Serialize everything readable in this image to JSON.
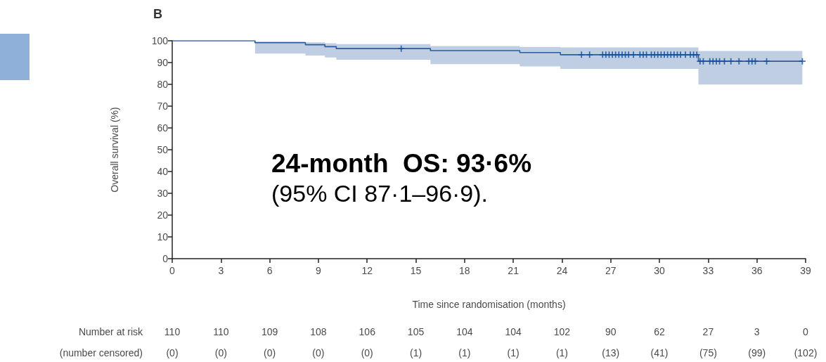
{
  "chart_data": {
    "type": "step",
    "title": "B",
    "xlabel": "Time since randomisation (months)",
    "ylabel": "Overall survival (%)",
    "xlim": [
      0,
      39
    ],
    "xticks": [
      0,
      3,
      6,
      9,
      12,
      15,
      18,
      21,
      24,
      27,
      30,
      33,
      36,
      39
    ],
    "ylim": [
      0,
      100
    ],
    "yticks": [
      0,
      10,
      20,
      30,
      40,
      50,
      60,
      70,
      80,
      90,
      100
    ],
    "series": [
      {
        "color": "#2a5d9f",
        "x": [
          0,
          5.1,
          8.2,
          9.4,
          10.1,
          15.9,
          21.4,
          23.9,
          32.4,
          38.8
        ],
        "values": [
          100,
          99.1,
          98.2,
          97.3,
          96.4,
          95.5,
          94.6,
          93.6,
          90.6,
          90.6
        ],
        "lower": [
          100,
          94.1,
          93.2,
          92.3,
          91.3,
          89.3,
          88.2,
          87.1,
          79.9,
          79.9
        ],
        "upper": [
          100,
          99.7,
          99.3,
          98.9,
          98.5,
          97.6,
          97.2,
          96.9,
          95.3,
          95.3
        ]
      },
      {
        "type": "scatter",
        "color": "#0f4e9a",
        "marker": "cross",
        "x": [
          14.1,
          25.2,
          25.7,
          26.5,
          26.7,
          26.9,
          27.1,
          27.3,
          27.5,
          27.7,
          27.9,
          28.1,
          28.4,
          28.8,
          29.0,
          29.2,
          29.5,
          29.7,
          29.9,
          30.1,
          30.3,
          30.5,
          30.7,
          30.9,
          31.1,
          31.3,
          31.6,
          31.9,
          32.1,
          32.3,
          32.5,
          32.7,
          33.1,
          33.3,
          33.5,
          33.7,
          34.0,
          34.4,
          34.9,
          35.5,
          35.7,
          35.9,
          36.6,
          38.8
        ],
        "values": [
          96.4,
          93.6,
          93.6,
          93.6,
          93.6,
          93.6,
          93.6,
          93.6,
          93.6,
          93.6,
          93.6,
          93.6,
          93.6,
          93.6,
          93.6,
          93.6,
          93.6,
          93.6,
          93.6,
          93.6,
          93.6,
          93.6,
          93.6,
          93.6,
          93.6,
          93.6,
          93.6,
          93.6,
          93.6,
          93.6,
          90.6,
          90.6,
          90.6,
          90.6,
          90.6,
          90.6,
          90.6,
          90.6,
          90.6,
          90.6,
          90.6,
          90.6,
          90.6,
          90.6
        ]
      }
    ],
    "annotations": [
      "24-month  OS: 93·6%",
      "(95% CI 87·1–96·9).",
      "Number at risk",
      "110",
      "110",
      "109",
      "108",
      "106",
      "105",
      "104",
      "104",
      "102",
      "90",
      "62",
      "27",
      "3",
      "0",
      "(number censored)",
      "(0)",
      "(0)",
      "(0)",
      "(0)",
      "(0)",
      "(1)",
      "(1)",
      "(1)",
      "(1)",
      "(13)",
      "(41)",
      "(75)",
      "(99)",
      "(102)"
    ]
  }
}
